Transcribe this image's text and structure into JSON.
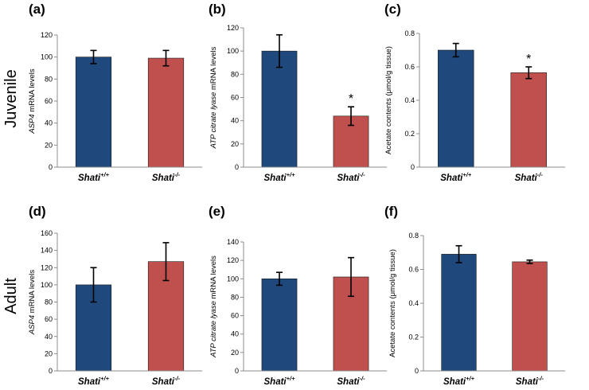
{
  "rows": [
    {
      "label": "Juvenile"
    },
    {
      "label": "Adult"
    }
  ],
  "colors": {
    "wild_type": "#1f497d",
    "knockout": "#c0504d",
    "axis": "#8c8c8c",
    "error": "#000000"
  },
  "chart_data": [
    {
      "panel": "(a)",
      "type": "bar",
      "ylabel_italic": "ASP4",
      "ylabel_rest": " mRNA levels",
      "categories": [
        {
          "base": "Shati",
          "sup": "+/+"
        },
        {
          "base": "Shati",
          "sup": "-/-"
        }
      ],
      "values": [
        100,
        99
      ],
      "errors": [
        6,
        7
      ],
      "ylim": [
        0,
        120
      ],
      "yticks": [
        "0",
        "20",
        "40",
        "60",
        "80",
        "100",
        "120"
      ],
      "annotations": [
        "",
        ""
      ]
    },
    {
      "panel": "(b)",
      "type": "bar",
      "ylabel_italic": "ATP citrate lyase",
      "ylabel_rest": " mRNA levels",
      "categories": [
        {
          "base": "Shati",
          "sup": "+/+"
        },
        {
          "base": "Shati",
          "sup": "-/-"
        }
      ],
      "values": [
        100,
        44
      ],
      "errors": [
        14,
        8
      ],
      "ylim": [
        0,
        120
      ],
      "yticks": [
        "0",
        "20",
        "40",
        "60",
        "80",
        "100",
        "120"
      ],
      "annotations": [
        "",
        "*"
      ]
    },
    {
      "panel": "(c)",
      "type": "bar",
      "ylabel_italic": "",
      "ylabel_rest": "Acetate contents (μmol/g tissue)",
      "categories": [
        {
          "base": "Shati",
          "sup": "+/+"
        },
        {
          "base": "Shati",
          "sup": "-/-"
        }
      ],
      "values": [
        0.7,
        0.565
      ],
      "errors": [
        0.04,
        0.035
      ],
      "ylim": [
        0,
        0.8
      ],
      "yticks": [
        "0",
        "0.2",
        "0.4",
        "0.6",
        "0.8"
      ],
      "annotations": [
        "",
        "*"
      ]
    },
    {
      "panel": "(d)",
      "type": "bar",
      "ylabel_italic": "ASP4",
      "ylabel_rest": " mRNA levels",
      "categories": [
        {
          "base": "Shati",
          "sup": "+/+"
        },
        {
          "base": "Shati",
          "sup": "-/-"
        }
      ],
      "values": [
        100,
        127
      ],
      "errors": [
        20,
        22
      ],
      "ylim": [
        0,
        160
      ],
      "yticks": [
        "0",
        "20",
        "40",
        "60",
        "80",
        "100",
        "120",
        "140",
        "160"
      ],
      "annotations": [
        "",
        ""
      ]
    },
    {
      "panel": "(e)",
      "type": "bar",
      "ylabel_italic": "ATP citrate lyase",
      "ylabel_rest": " mRNA levels",
      "categories": [
        {
          "base": "Shati",
          "sup": "+/+"
        },
        {
          "base": "Shati",
          "sup": "-/-"
        }
      ],
      "values": [
        100,
        102
      ],
      "errors": [
        7,
        21
      ],
      "ylim": [
        0,
        140
      ],
      "yticks": [
        "0",
        "20",
        "40",
        "60",
        "80",
        "100",
        "120",
        "140"
      ],
      "annotations": [
        "",
        ""
      ]
    },
    {
      "panel": "(f)",
      "type": "bar",
      "ylabel_italic": "",
      "ylabel_rest": "Acetate contents (μmol/g tissue)",
      "categories": [
        {
          "base": "Shati",
          "sup": "+/+"
        },
        {
          "base": "Shati",
          "sup": "-/-"
        }
      ],
      "values": [
        0.69,
        0.645
      ],
      "errors": [
        0.05,
        0.01
      ],
      "ylim": [
        0,
        0.8
      ],
      "yticks": [
        "0",
        "0.2",
        "0.4",
        "0.6",
        "0.8"
      ],
      "annotations": [
        "",
        ""
      ]
    }
  ]
}
